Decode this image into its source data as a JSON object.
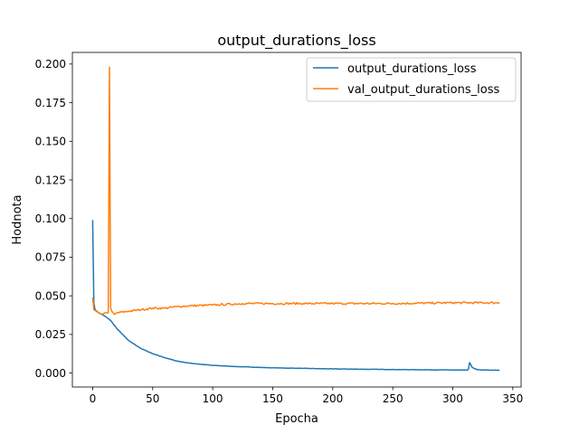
{
  "chart_data": {
    "type": "line",
    "title": "output_durations_loss",
    "xlabel": "Epocha",
    "ylabel": "Hodnota",
    "xlim": [
      -16.9,
      356.9
    ],
    "ylim": [
      -0.009,
      0.2075
    ],
    "xticks": [
      0,
      50,
      100,
      150,
      200,
      250,
      300,
      350
    ],
    "xtick_labels": [
      "0",
      "50",
      "100",
      "150",
      "200",
      "250",
      "300",
      "350"
    ],
    "yticks": [
      0.0,
      0.025,
      0.05,
      0.075,
      0.1,
      0.125,
      0.15,
      0.175,
      0.2
    ],
    "ytick_labels": [
      "0.000",
      "0.025",
      "0.050",
      "0.075",
      "0.100",
      "0.125",
      "0.150",
      "0.175",
      "0.200"
    ],
    "grid": false,
    "legend": {
      "placement": "top-right"
    },
    "epochs": 340,
    "series": [
      {
        "name": "output_durations_loss",
        "color": "#1f77b4",
        "keypoints": [
          [
            0,
            0.099
          ],
          [
            1,
            0.045
          ],
          [
            2,
            0.041
          ],
          [
            5,
            0.039
          ],
          [
            10,
            0.037
          ],
          [
            15,
            0.034
          ],
          [
            20,
            0.029
          ],
          [
            25,
            0.025
          ],
          [
            30,
            0.021
          ],
          [
            40,
            0.016
          ],
          [
            50,
            0.0125
          ],
          [
            60,
            0.01
          ],
          [
            70,
            0.0078
          ],
          [
            80,
            0.0065
          ],
          [
            90,
            0.0057
          ],
          [
            100,
            0.005
          ],
          [
            120,
            0.0042
          ],
          [
            150,
            0.0034
          ],
          [
            200,
            0.0027
          ],
          [
            250,
            0.0023
          ],
          [
            300,
            0.002
          ],
          [
            312,
            0.0019
          ],
          [
            313,
            0.0025
          ],
          [
            314,
            0.0068
          ],
          [
            315,
            0.0055
          ],
          [
            316,
            0.0038
          ],
          [
            318,
            0.0029
          ],
          [
            320,
            0.0023
          ],
          [
            325,
            0.002
          ],
          [
            339,
            0.0018
          ]
        ]
      },
      {
        "name": "val_output_durations_loss",
        "color": "#ff7f0e",
        "keypoints": [
          [
            0,
            0.049
          ],
          [
            1,
            0.041
          ],
          [
            3,
            0.04
          ],
          [
            5,
            0.039
          ],
          [
            8,
            0.038
          ],
          [
            10,
            0.039
          ],
          [
            13,
            0.039
          ],
          [
            14,
            0.198
          ],
          [
            15,
            0.042
          ],
          [
            16,
            0.04
          ],
          [
            18,
            0.038
          ],
          [
            20,
            0.039
          ],
          [
            30,
            0.04
          ],
          [
            40,
            0.041
          ],
          [
            50,
            0.042
          ],
          [
            60,
            0.042
          ],
          [
            70,
            0.043
          ],
          [
            80,
            0.0435
          ],
          [
            100,
            0.044
          ],
          [
            125,
            0.045
          ],
          [
            150,
            0.045
          ],
          [
            175,
            0.045
          ],
          [
            200,
            0.045
          ],
          [
            250,
            0.045
          ],
          [
            300,
            0.0455
          ],
          [
            339,
            0.0455
          ]
        ]
      }
    ]
  }
}
